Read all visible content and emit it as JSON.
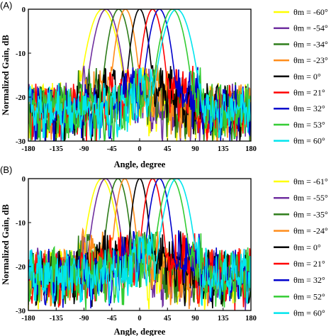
{
  "chart_data": [
    {
      "type": "line",
      "panel_label": "(A)",
      "xlabel": "Angle, degree",
      "ylabel": "Normalized Gain, dB",
      "xlim": [
        -180,
        180
      ],
      "ylim": [
        -30,
        0
      ],
      "xticks": [
        "-180",
        "-135",
        "-90",
        "-45",
        "0",
        "45",
        "90",
        "135",
        "180"
      ],
      "yticks": [
        "0",
        "-10",
        "-20",
        "-30"
      ],
      "legend_position": "right",
      "series": [
        {
          "name": "θm = -60°",
          "color": "#ffff00",
          "peak": -60,
          "beamwidth": 30,
          "floor": -22
        },
        {
          "name": "θm = -54°",
          "color": "#7030a0",
          "peak": -54,
          "beamwidth": 26,
          "floor": -22
        },
        {
          "name": "θm = -34°",
          "color": "#2e7d1a",
          "peak": -34,
          "beamwidth": 22,
          "floor": -22
        },
        {
          "name": "θm = -23°",
          "color": "#ff8c1a",
          "peak": -23,
          "beamwidth": 20,
          "floor": -22
        },
        {
          "name": "θm = 0°",
          "color": "#000000",
          "peak": 0,
          "beamwidth": 18,
          "floor": -22
        },
        {
          "name": "θm = 21°",
          "color": "#ff0000",
          "peak": 21,
          "beamwidth": 20,
          "floor": -22
        },
        {
          "name": "θm = 32°",
          "color": "#0000cc",
          "peak": 32,
          "beamwidth": 22,
          "floor": -22
        },
        {
          "name": "θm = 53°",
          "color": "#33cc33",
          "peak": 53,
          "beamwidth": 26,
          "floor": -22
        },
        {
          "name": "θm = 60°",
          "color": "#00e5ee",
          "peak": 60,
          "beamwidth": 30,
          "floor": -22
        }
      ]
    },
    {
      "type": "line",
      "panel_label": "(B)",
      "xlabel": "Angle, degree",
      "ylabel": "Normalized Gain, dB",
      "xlim": [
        -180,
        180
      ],
      "ylim": [
        -30,
        0
      ],
      "xticks": [
        "-180",
        "-135",
        "-90",
        "-45",
        "0",
        "45",
        "90",
        "135",
        "180"
      ],
      "yticks": [
        "0",
        "-10",
        "-20",
        "-30"
      ],
      "legend_position": "right",
      "series": [
        {
          "name": "θm = -61°",
          "color": "#ffff00",
          "peak": -61,
          "beamwidth": 26,
          "floor": -21
        },
        {
          "name": "θm = -55°",
          "color": "#7030a0",
          "peak": -55,
          "beamwidth": 24,
          "floor": -21
        },
        {
          "name": "θm = -35°",
          "color": "#2e7d1a",
          "peak": -35,
          "beamwidth": 20,
          "floor": -21
        },
        {
          "name": "θm = -24°",
          "color": "#ff8c1a",
          "peak": -24,
          "beamwidth": 18,
          "floor": -21
        },
        {
          "name": "θm = 0°",
          "color": "#000000",
          "peak": 0,
          "beamwidth": 16,
          "floor": -21
        },
        {
          "name": "θm = 21°",
          "color": "#ff0000",
          "peak": 21,
          "beamwidth": 18,
          "floor": -21
        },
        {
          "name": "θm = 32°",
          "color": "#0000cc",
          "peak": 32,
          "beamwidth": 20,
          "floor": -21
        },
        {
          "name": "θm = 52°",
          "color": "#33cc33",
          "peak": 52,
          "beamwidth": 24,
          "floor": -21
        },
        {
          "name": "θm = 60°",
          "color": "#00e5ee",
          "peak": 60,
          "beamwidth": 26,
          "floor": -21
        }
      ]
    }
  ]
}
